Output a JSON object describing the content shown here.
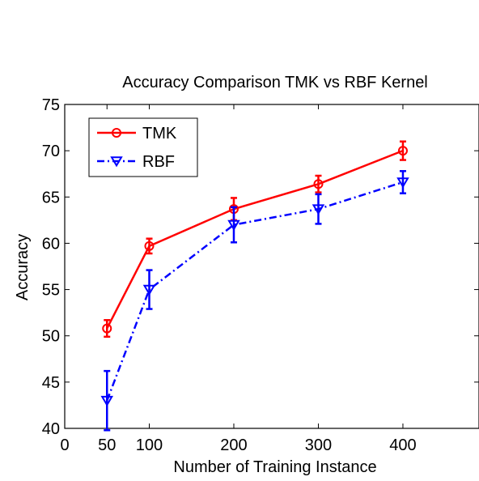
{
  "chart_data": {
    "type": "line",
    "title": "Accuracy Comparison TMK vs RBF Kernel",
    "xlabel": "Number of Training Instance",
    "ylabel": "Accuracy",
    "xlim": [
      0,
      490
    ],
    "ylim": [
      40,
      75
    ],
    "xticks": [
      0,
      50,
      100,
      200,
      300,
      400
    ],
    "yticks": [
      40,
      45,
      50,
      55,
      60,
      65,
      70,
      75
    ],
    "grid": false,
    "legend_position": "top-left",
    "x": [
      50,
      100,
      200,
      300,
      400
    ],
    "series": [
      {
        "name": "TMK",
        "color": "#ff0000",
        "line_style": "solid",
        "marker": "circle",
        "values": [
          50.8,
          59.7,
          63.7,
          66.4,
          70.0
        ],
        "errors": [
          0.9,
          0.8,
          1.2,
          0.9,
          1.0
        ]
      },
      {
        "name": "RBF",
        "color": "#0000ff",
        "line_style": "dash-dot",
        "marker": "triangle-down",
        "values": [
          43.0,
          55.0,
          62.0,
          63.7,
          66.6
        ],
        "errors": [
          3.2,
          2.1,
          1.9,
          1.6,
          1.2
        ]
      }
    ]
  }
}
